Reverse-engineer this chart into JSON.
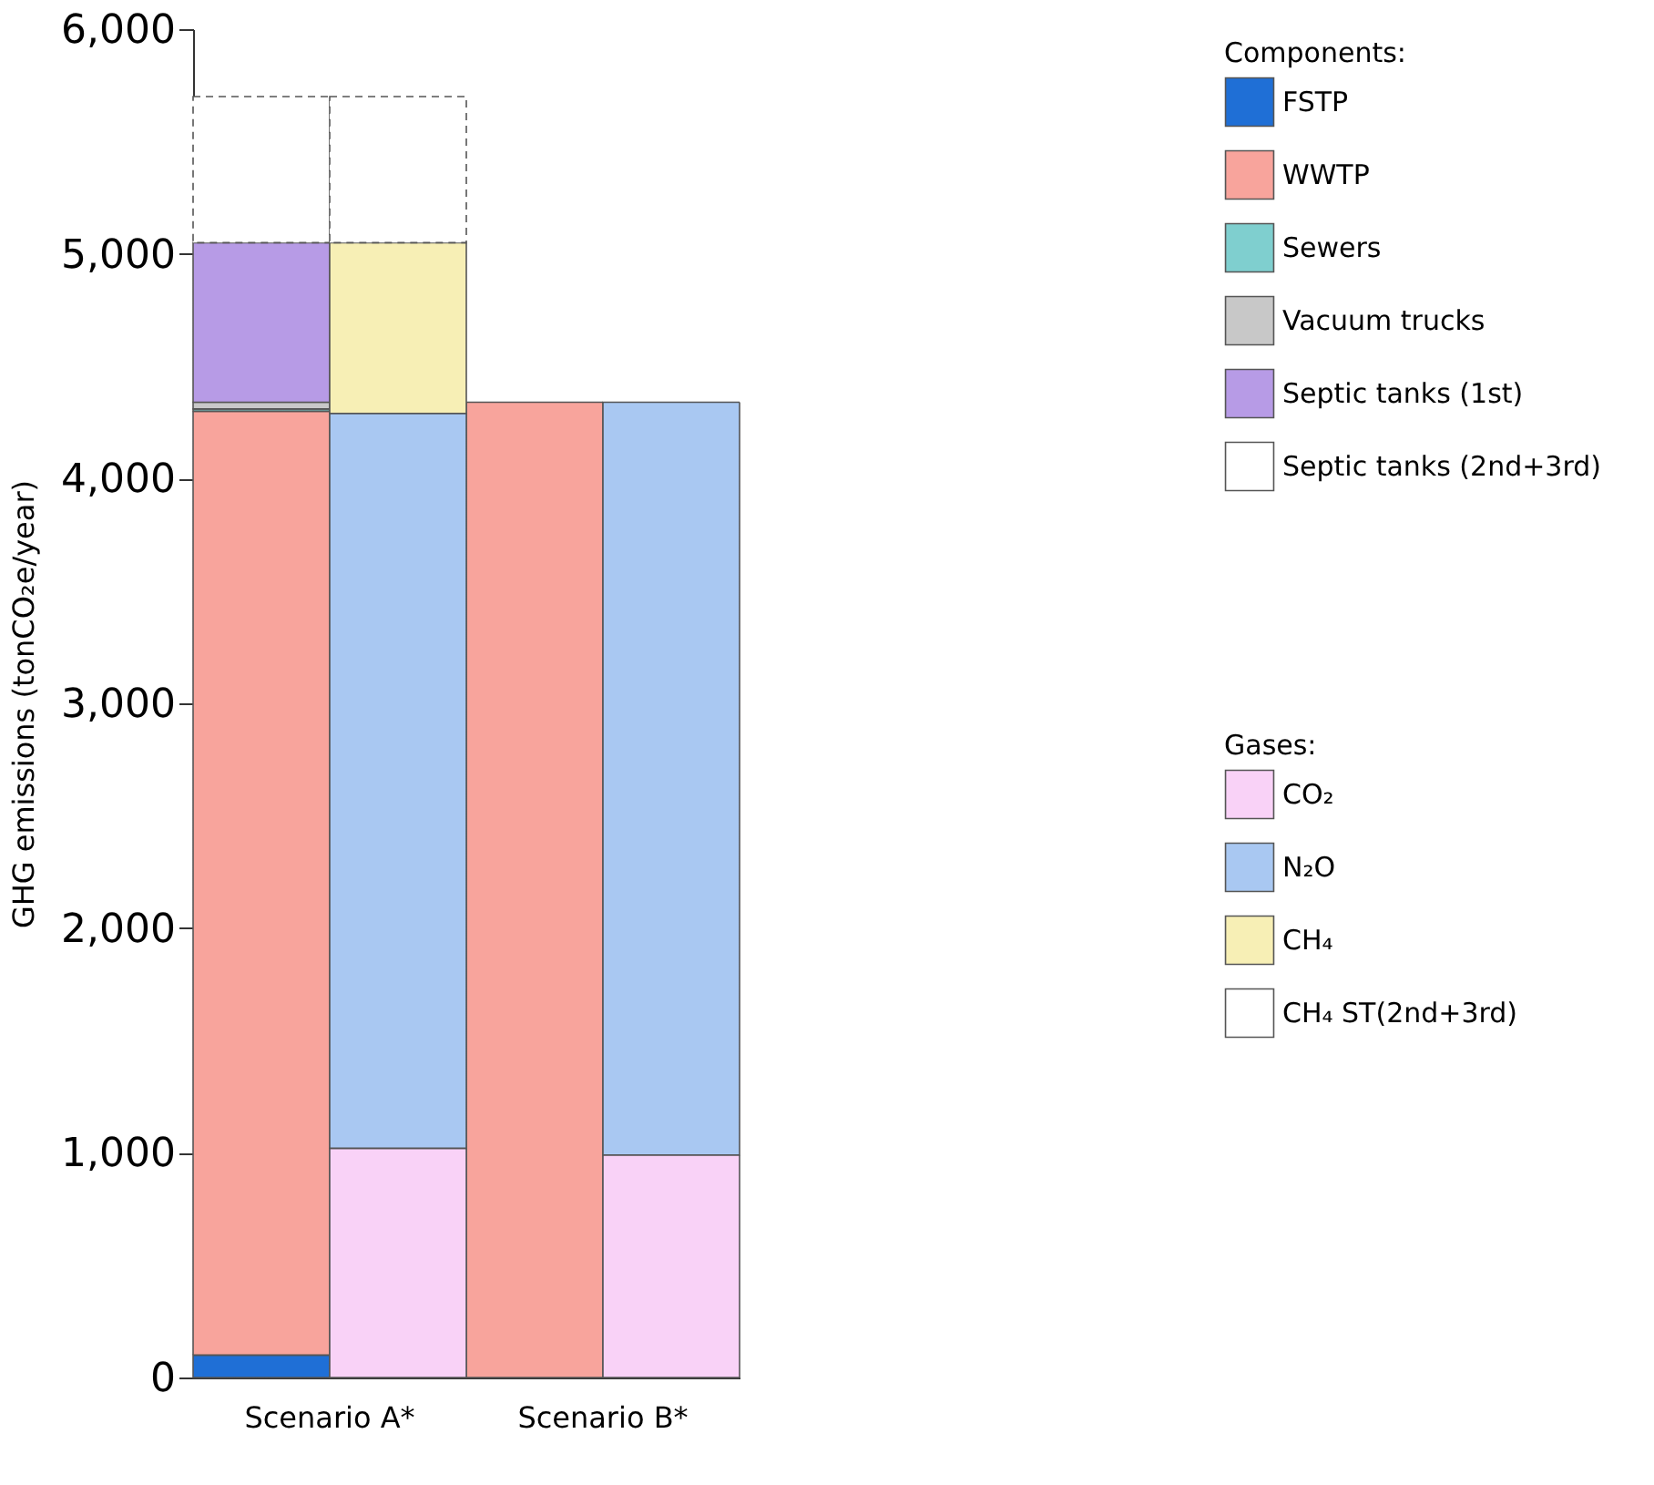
{
  "chart_data": {
    "type": "bar",
    "stacked": true,
    "ylabel": "GHG emissions (tonCO₂e/year)",
    "legend_title": "Components:",
    "annotations": [
      "Gases:"
    ],
    "categories": [
      "Scenario A*",
      null,
      "Scenario B*",
      null
    ],
    "ylim": [
      0,
      6000
    ],
    "yticks": [
      0,
      {
        "value": 1000,
        "label": "1,000"
      },
      {
        "value": 2000,
        "label": "2,000"
      },
      {
        "value": 3000,
        "label": "3,000"
      },
      {
        "value": 4000,
        "label": "4,000"
      },
      {
        "value": 5000,
        "label": "5,000"
      },
      {
        "value": 6000,
        "label": "6,000"
      }
    ],
    "legend": "top right",
    "grid": false,
    "series": [
      {
        "name": "FSTP",
        "color": "#1f6fd6",
        "values": [
          100,
          null,
          null,
          null
        ]
      },
      {
        "name": "WWTP",
        "color": "#f8a49c",
        "values": [
          4200,
          null,
          4340,
          null
        ]
      },
      {
        "name": "Sewers",
        "color": "#7fcfcf",
        "values": [
          10,
          null,
          null,
          null
        ]
      },
      {
        "name": "Vacuum trucks",
        "color": "#c8c8c8",
        "values": [
          30,
          null,
          null,
          null
        ]
      },
      {
        "name": "Septic tanks (1st)",
        "color": "#b79be6",
        "values": [
          710,
          null,
          null,
          null
        ]
      },
      {
        "name": "Septic tanks (2nd+3rd)",
        "color": "#ffffff",
        "line_style": "dashed",
        "values": [
          650,
          null,
          null,
          null
        ]
      },
      {
        "name": "CO₂",
        "color": "#f9d2f7",
        "values": [
          null,
          1020,
          null,
          990
        ]
      },
      {
        "name": "N₂O",
        "color": "#a9c8f2",
        "values": [
          null,
          3270,
          null,
          3350
        ]
      },
      {
        "name": "CH₄",
        "color": "#f7efb5",
        "values": [
          null,
          760,
          null,
          null
        ]
      },
      {
        "name": "CH₄ ST(2nd+3rd)",
        "color": "#ffffff",
        "line_style": "dashed",
        "values": [
          null,
          650,
          null,
          null
        ]
      }
    ]
  }
}
